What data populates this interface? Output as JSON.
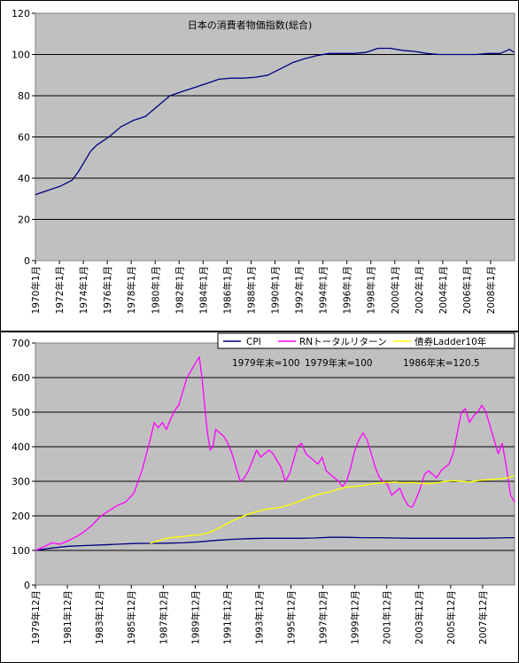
{
  "chart_data": [
    {
      "type": "line",
      "title": "日本の消費者物価指数(総合)",
      "ylim": [
        0,
        120
      ],
      "y_ticks": [
        "0",
        "20",
        "40",
        "60",
        "80",
        "100",
        "120"
      ],
      "x_tick_labels": [
        "1970年1月",
        "1972年1月",
        "1974年1月",
        "1976年1月",
        "1978年1月",
        "1980年1月",
        "1982年1月",
        "1984年1月",
        "1986年1月",
        "1988年1月",
        "1990年1月",
        "1992年1月",
        "1994年1月",
        "1996年1月",
        "1998年1月",
        "2000年1月",
        "2002年1月",
        "2004年1月",
        "2006年1月",
        "2008年1月"
      ],
      "x_range": [
        "1970-01",
        "2009-03"
      ],
      "grid": "horizontal",
      "plot_background": "#c0c0c0",
      "series": [
        {
          "color": "#000080",
          "points": [
            [
              "1970-01",
              32
            ],
            [
              "1971-01",
              34
            ],
            [
              "1972-01",
              36
            ],
            [
              "1973-01",
              39
            ],
            [
              "1973-07",
              43
            ],
            [
              "1974-01",
              48
            ],
            [
              "1974-07",
              53
            ],
            [
              "1975-01",
              56
            ],
            [
              "1976-01",
              60
            ],
            [
              "1977-01",
              65
            ],
            [
              "1978-01",
              68
            ],
            [
              "1979-01",
              70
            ],
            [
              "1980-01",
              75
            ],
            [
              "1981-01",
              80
            ],
            [
              "1982-01",
              82
            ],
            [
              "1983-01",
              84
            ],
            [
              "1984-01",
              86
            ],
            [
              "1985-01",
              88
            ],
            [
              "1986-01",
              88.5
            ],
            [
              "1987-01",
              88.5
            ],
            [
              "1988-01",
              89
            ],
            [
              "1989-01",
              90
            ],
            [
              "1990-01",
              93
            ],
            [
              "1991-01",
              96
            ],
            [
              "1992-01",
              98
            ],
            [
              "1993-01",
              99.5
            ],
            [
              "1994-01",
              100.5
            ],
            [
              "1995-01",
              100.5
            ],
            [
              "1996-01",
              100.5
            ],
            [
              "1997-01",
              101
            ],
            [
              "1998-01",
              103
            ],
            [
              "1999-01",
              103
            ],
            [
              "2000-01",
              102
            ],
            [
              "2001-01",
              101.5
            ],
            [
              "2002-01",
              100.5
            ],
            [
              "2003-01",
              100
            ],
            [
              "2004-01",
              100
            ],
            [
              "2005-01",
              100
            ],
            [
              "2006-01",
              100
            ],
            [
              "2007-01",
              100.5
            ],
            [
              "2008-01",
              100.5
            ],
            [
              "2008-10",
              102.5
            ],
            [
              "2009-03",
              101
            ]
          ]
        }
      ]
    },
    {
      "type": "line",
      "ylim": [
        0,
        700
      ],
      "y_ticks": [
        "0",
        "100",
        "200",
        "300",
        "400",
        "500",
        "600",
        "700"
      ],
      "x_tick_labels": [
        "1979年12月",
        "1981年12月",
        "1983年12月",
        "1985年12月",
        "1987年12月",
        "1989年12月",
        "1991年12月",
        "1993年12月",
        "1995年12月",
        "1997年12月",
        "1999年12月",
        "2001年12月",
        "2003年12月",
        "2005年12月",
        "2007年12月"
      ],
      "x_range": [
        "1979-12",
        "2009-03"
      ],
      "grid": "horizontal",
      "plot_background": "#c0c0c0",
      "legend_position": "top-right",
      "annotations": [
        "1979年末=100",
        "1979年末=100",
        "1986年末=120.5"
      ],
      "series": [
        {
          "name": "CPI",
          "color": "#000080",
          "points": [
            [
              "1979-12",
              100
            ],
            [
              "1980-12",
              107
            ],
            [
              "1981-12",
              112
            ],
            [
              "1982-12",
              114
            ],
            [
              "1983-12",
              116
            ],
            [
              "1984-12",
              118
            ],
            [
              "1985-12",
              120
            ],
            [
              "1986-12",
              120.5
            ],
            [
              "1987-12",
              121
            ],
            [
              "1988-12",
              122
            ],
            [
              "1989-12",
              125
            ],
            [
              "1990-12",
              129
            ],
            [
              "1991-12",
              132
            ],
            [
              "1992-12",
              134
            ],
            [
              "1993-12",
              135
            ],
            [
              "1994-12",
              135
            ],
            [
              "1995-12",
              135
            ],
            [
              "1996-12",
              136
            ],
            [
              "1997-12",
              138
            ],
            [
              "1998-12",
              138
            ],
            [
              "1999-12",
              137
            ],
            [
              "2000-12",
              137
            ],
            [
              "2001-12",
              136
            ],
            [
              "2002-12",
              135
            ],
            [
              "2003-12",
              135
            ],
            [
              "2004-12",
              135
            ],
            [
              "2005-12",
              135
            ],
            [
              "2006-12",
              135
            ],
            [
              "2007-12",
              136
            ],
            [
              "2008-12",
              137
            ],
            [
              "2009-03",
              137
            ]
          ]
        },
        {
          "name": "RNトータルリターン",
          "color": "#ff00ff",
          "points": [
            [
              "1979-12",
              100
            ],
            [
              "1980-06",
              110
            ],
            [
              "1980-12",
              122
            ],
            [
              "1981-06",
              118
            ],
            [
              "1981-12",
              128
            ],
            [
              "1982-06",
              140
            ],
            [
              "1982-12",
              155
            ],
            [
              "1983-06",
              175
            ],
            [
              "1983-12",
              200
            ],
            [
              "1984-06",
              215
            ],
            [
              "1984-12",
              230
            ],
            [
              "1985-06",
              240
            ],
            [
              "1985-12",
              265
            ],
            [
              "1986-06",
              330
            ],
            [
              "1986-12",
              420
            ],
            [
              "1987-03",
              470
            ],
            [
              "1987-06",
              455
            ],
            [
              "1987-09",
              470
            ],
            [
              "1987-12",
              450
            ],
            [
              "1988-03",
              480
            ],
            [
              "1988-06",
              505
            ],
            [
              "1988-09",
              520
            ],
            [
              "1988-12",
              560
            ],
            [
              "1989-03",
              600
            ],
            [
              "1989-06",
              620
            ],
            [
              "1989-09",
              640
            ],
            [
              "1989-12",
              660
            ],
            [
              "1990-02",
              600
            ],
            [
              "1990-04",
              520
            ],
            [
              "1990-06",
              440
            ],
            [
              "1990-08",
              390
            ],
            [
              "1990-10",
              400
            ],
            [
              "1990-12",
              450
            ],
            [
              "1991-03",
              440
            ],
            [
              "1991-06",
              430
            ],
            [
              "1991-09",
              410
            ],
            [
              "1991-12",
              380
            ],
            [
              "1992-03",
              340
            ],
            [
              "1992-06",
              300
            ],
            [
              "1992-09",
              310
            ],
            [
              "1992-12",
              330
            ],
            [
              "1993-03",
              360
            ],
            [
              "1993-06",
              390
            ],
            [
              "1993-09",
              370
            ],
            [
              "1993-12",
              380
            ],
            [
              "1994-03",
              390
            ],
            [
              "1994-06",
              380
            ],
            [
              "1994-09",
              360
            ],
            [
              "1994-12",
              340
            ],
            [
              "1995-03",
              300
            ],
            [
              "1995-06",
              320
            ],
            [
              "1995-09",
              360
            ],
            [
              "1995-12",
              400
            ],
            [
              "1996-03",
              410
            ],
            [
              "1996-06",
              380
            ],
            [
              "1996-09",
              370
            ],
            [
              "1996-12",
              360
            ],
            [
              "1997-03",
              350
            ],
            [
              "1997-06",
              370
            ],
            [
              "1997-09",
              330
            ],
            [
              "1997-12",
              320
            ],
            [
              "1998-03",
              310
            ],
            [
              "1998-06",
              300
            ],
            [
              "1998-09",
              285
            ],
            [
              "1998-12",
              300
            ],
            [
              "1999-03",
              340
            ],
            [
              "1999-06",
              390
            ],
            [
              "1999-09",
              420
            ],
            [
              "1999-12",
              440
            ],
            [
              "2000-03",
              420
            ],
            [
              "2000-06",
              380
            ],
            [
              "2000-09",
              340
            ],
            [
              "2000-12",
              310
            ],
            [
              "2001-03",
              300
            ],
            [
              "2001-06",
              290
            ],
            [
              "2001-09",
              260
            ],
            [
              "2001-12",
              270
            ],
            [
              "2002-03",
              280
            ],
            [
              "2002-06",
              250
            ],
            [
              "2002-09",
              230
            ],
            [
              "2002-12",
              225
            ],
            [
              "2003-03",
              250
            ],
            [
              "2003-06",
              280
            ],
            [
              "2003-09",
              320
            ],
            [
              "2003-12",
              330
            ],
            [
              "2004-03",
              320
            ],
            [
              "2004-06",
              310
            ],
            [
              "2004-09",
              330
            ],
            [
              "2004-12",
              340
            ],
            [
              "2005-03",
              350
            ],
            [
              "2005-06",
              380
            ],
            [
              "2005-09",
              440
            ],
            [
              "2005-12",
              500
            ],
            [
              "2006-03",
              510
            ],
            [
              "2006-06",
              470
            ],
            [
              "2006-09",
              490
            ],
            [
              "2006-12",
              500
            ],
            [
              "2007-03",
              520
            ],
            [
              "2007-06",
              500
            ],
            [
              "2007-09",
              460
            ],
            [
              "2007-12",
              420
            ],
            [
              "2008-03",
              380
            ],
            [
              "2008-06",
              410
            ],
            [
              "2008-09",
              340
            ],
            [
              "2008-12",
              260
            ],
            [
              "2009-03",
              240
            ]
          ]
        },
        {
          "name": "債券Ladder10年",
          "color": "#ffff00",
          "points": [
            [
              "1986-12",
              120.5
            ],
            [
              "1987-06",
              128
            ],
            [
              "1987-12",
              135
            ],
            [
              "1988-06",
              138
            ],
            [
              "1988-12",
              140
            ],
            [
              "1989-06",
              143
            ],
            [
              "1989-12",
              145
            ],
            [
              "1990-06",
              150
            ],
            [
              "1990-12",
              160
            ],
            [
              "1991-06",
              172
            ],
            [
              "1991-12",
              185
            ],
            [
              "1992-06",
              195
            ],
            [
              "1992-12",
              205
            ],
            [
              "1993-06",
              212
            ],
            [
              "1993-12",
              218
            ],
            [
              "1994-06",
              222
            ],
            [
              "1994-12",
              225
            ],
            [
              "1995-06",
              232
            ],
            [
              "1995-12",
              240
            ],
            [
              "1996-06",
              250
            ],
            [
              "1996-12",
              258
            ],
            [
              "1997-06",
              265
            ],
            [
              "1997-12",
              270
            ],
            [
              "1998-06",
              278
            ],
            [
              "1998-12",
              283
            ],
            [
              "1999-06",
              285
            ],
            [
              "1999-12",
              288
            ],
            [
              "2000-06",
              292
            ],
            [
              "2000-12",
              295
            ],
            [
              "2001-06",
              297
            ],
            [
              "2001-12",
              298
            ],
            [
              "2002-06",
              295
            ],
            [
              "2002-12",
              297
            ],
            [
              "2003-06",
              294
            ],
            [
              "2003-12",
              293
            ],
            [
              "2004-06",
              296
            ],
            [
              "2004-12",
              300
            ],
            [
              "2005-06",
              302
            ],
            [
              "2005-12",
              300
            ],
            [
              "2006-06",
              298
            ],
            [
              "2006-12",
              302
            ],
            [
              "2007-06",
              304
            ],
            [
              "2007-12",
              306
            ],
            [
              "2008-06",
              308
            ],
            [
              "2008-12",
              312
            ],
            [
              "2009-03",
              315
            ]
          ]
        }
      ]
    }
  ]
}
